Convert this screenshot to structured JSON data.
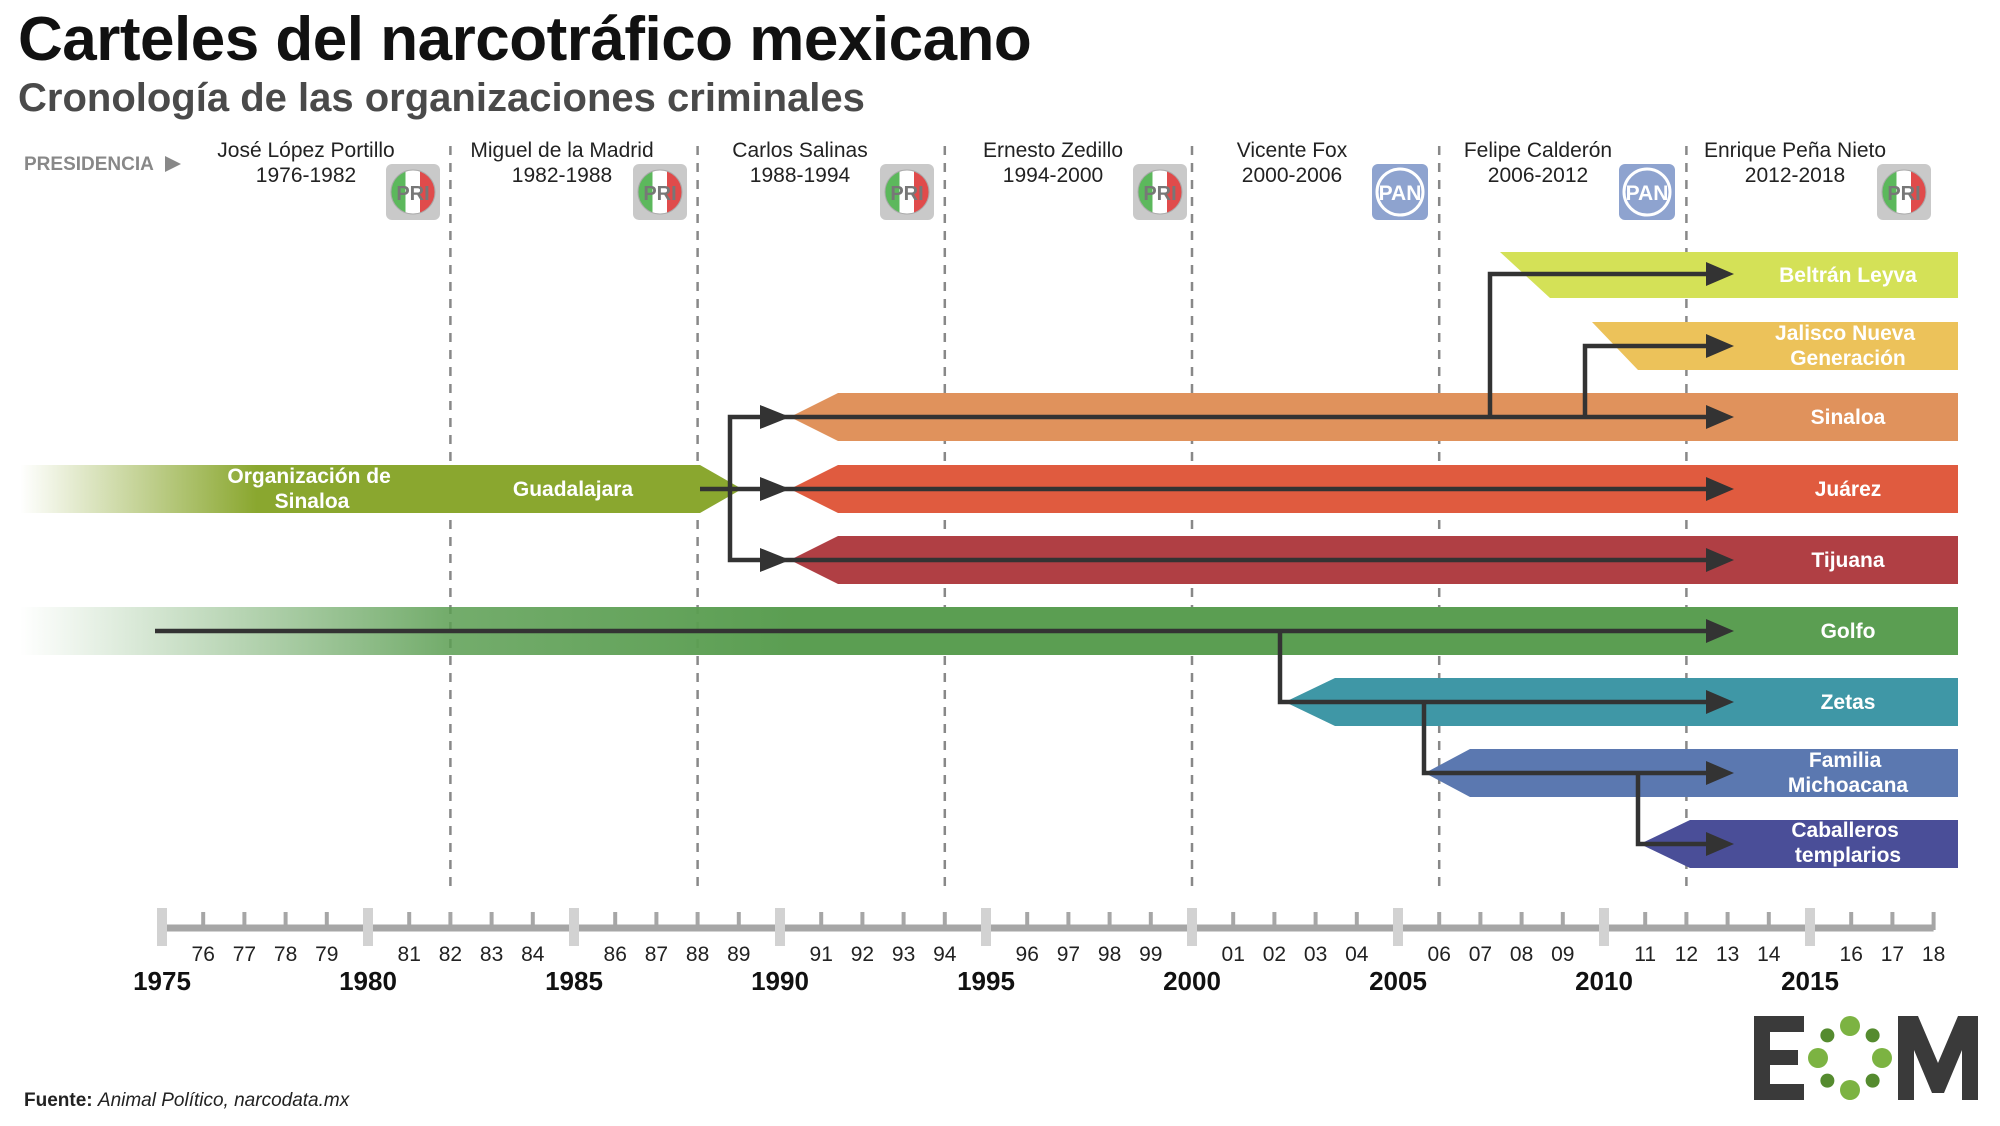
{
  "title": "Carteles del narcotráfico mexicano",
  "subtitle": "Cronología de las organizaciones criminales",
  "presidencia_label": "PRESIDENCIA",
  "presidencies": [
    {
      "name": "José López Portillo",
      "term": "1976-1982",
      "party": "PRI"
    },
    {
      "name": "Miguel de la Madrid",
      "term": "1982-1988",
      "party": "PRI"
    },
    {
      "name": "Carlos Salinas",
      "term": "1988-1994",
      "party": "PRI"
    },
    {
      "name": "Ernesto Zedillo",
      "term": "1994-2000",
      "party": "PRI"
    },
    {
      "name": "Vicente Fox",
      "term": "2000-2006",
      "party": "PAN"
    },
    {
      "name": "Felipe Calderón",
      "term": "2006-2012",
      "party": "PAN"
    },
    {
      "name": "Enrique Peña Nieto",
      "term": "2012-2018",
      "party": "PRI"
    }
  ],
  "cartels": [
    {
      "name": "Beltrán Leyva",
      "color": "#d4e157"
    },
    {
      "name": "Jalisco Nueva Generación",
      "label_lines": [
        "Jalisco Nueva",
        "Generación"
      ],
      "color": "#ecc25a"
    },
    {
      "name": "Sinaloa",
      "color": "#e0925c"
    },
    {
      "name": "Juárez",
      "color": "#e05b3f"
    },
    {
      "name": "Tijuana",
      "color": "#b03f44"
    },
    {
      "name": "Golfo",
      "color": "#5b9e52"
    },
    {
      "name": "Zetas",
      "color": "#3f97a6"
    },
    {
      "name": "Familia Michoacana",
      "label_lines": [
        "Familia",
        "Michoacana"
      ],
      "color": "#5b78b0"
    },
    {
      "name": "Caballeros templarios",
      "label_lines": [
        "Caballeros",
        "templarios"
      ],
      "color": "#4a4e98"
    }
  ],
  "precursors": [
    {
      "name": "Organización de Sinaloa",
      "label_lines": [
        "Organización de",
        "Sinaloa"
      ],
      "color": "#8aa72f"
    },
    {
      "name": "Guadalajara",
      "color": "#8aa72f"
    }
  ],
  "axis": {
    "years": [
      1975,
      1976,
      1977,
      1978,
      1979,
      1980,
      1981,
      1982,
      1983,
      1984,
      1985,
      1986,
      1987,
      1988,
      1989,
      1990,
      1991,
      1992,
      1993,
      1994,
      1995,
      1996,
      1997,
      1998,
      1999,
      2000,
      2001,
      2002,
      2003,
      2004,
      2005,
      2006,
      2007,
      2008,
      2009,
      2010,
      2011,
      2012,
      2013,
      2014,
      2015,
      2016,
      2017,
      2018
    ],
    "minor_labels": [
      "",
      "76",
      "77",
      "78",
      "79",
      "",
      "81",
      "82",
      "83",
      "84",
      "",
      "86",
      "87",
      "88",
      "89",
      "",
      "91",
      "92",
      "93",
      "94",
      "",
      "96",
      "97",
      "98",
      "99",
      "",
      "01",
      "02",
      "03",
      "04",
      "",
      "06",
      "07",
      "08",
      "09",
      "",
      "11",
      "12",
      "13",
      "14",
      "",
      "16",
      "17",
      "18"
    ],
    "major_labels": [
      "1975",
      "1980",
      "1985",
      "1990",
      "1995",
      "2000",
      "2005",
      "2010",
      "2015"
    ]
  },
  "source": {
    "label": "Fuente:",
    "text": "Animal Político, narcodata.mx"
  },
  "logo": {
    "text": "EOM"
  }
}
